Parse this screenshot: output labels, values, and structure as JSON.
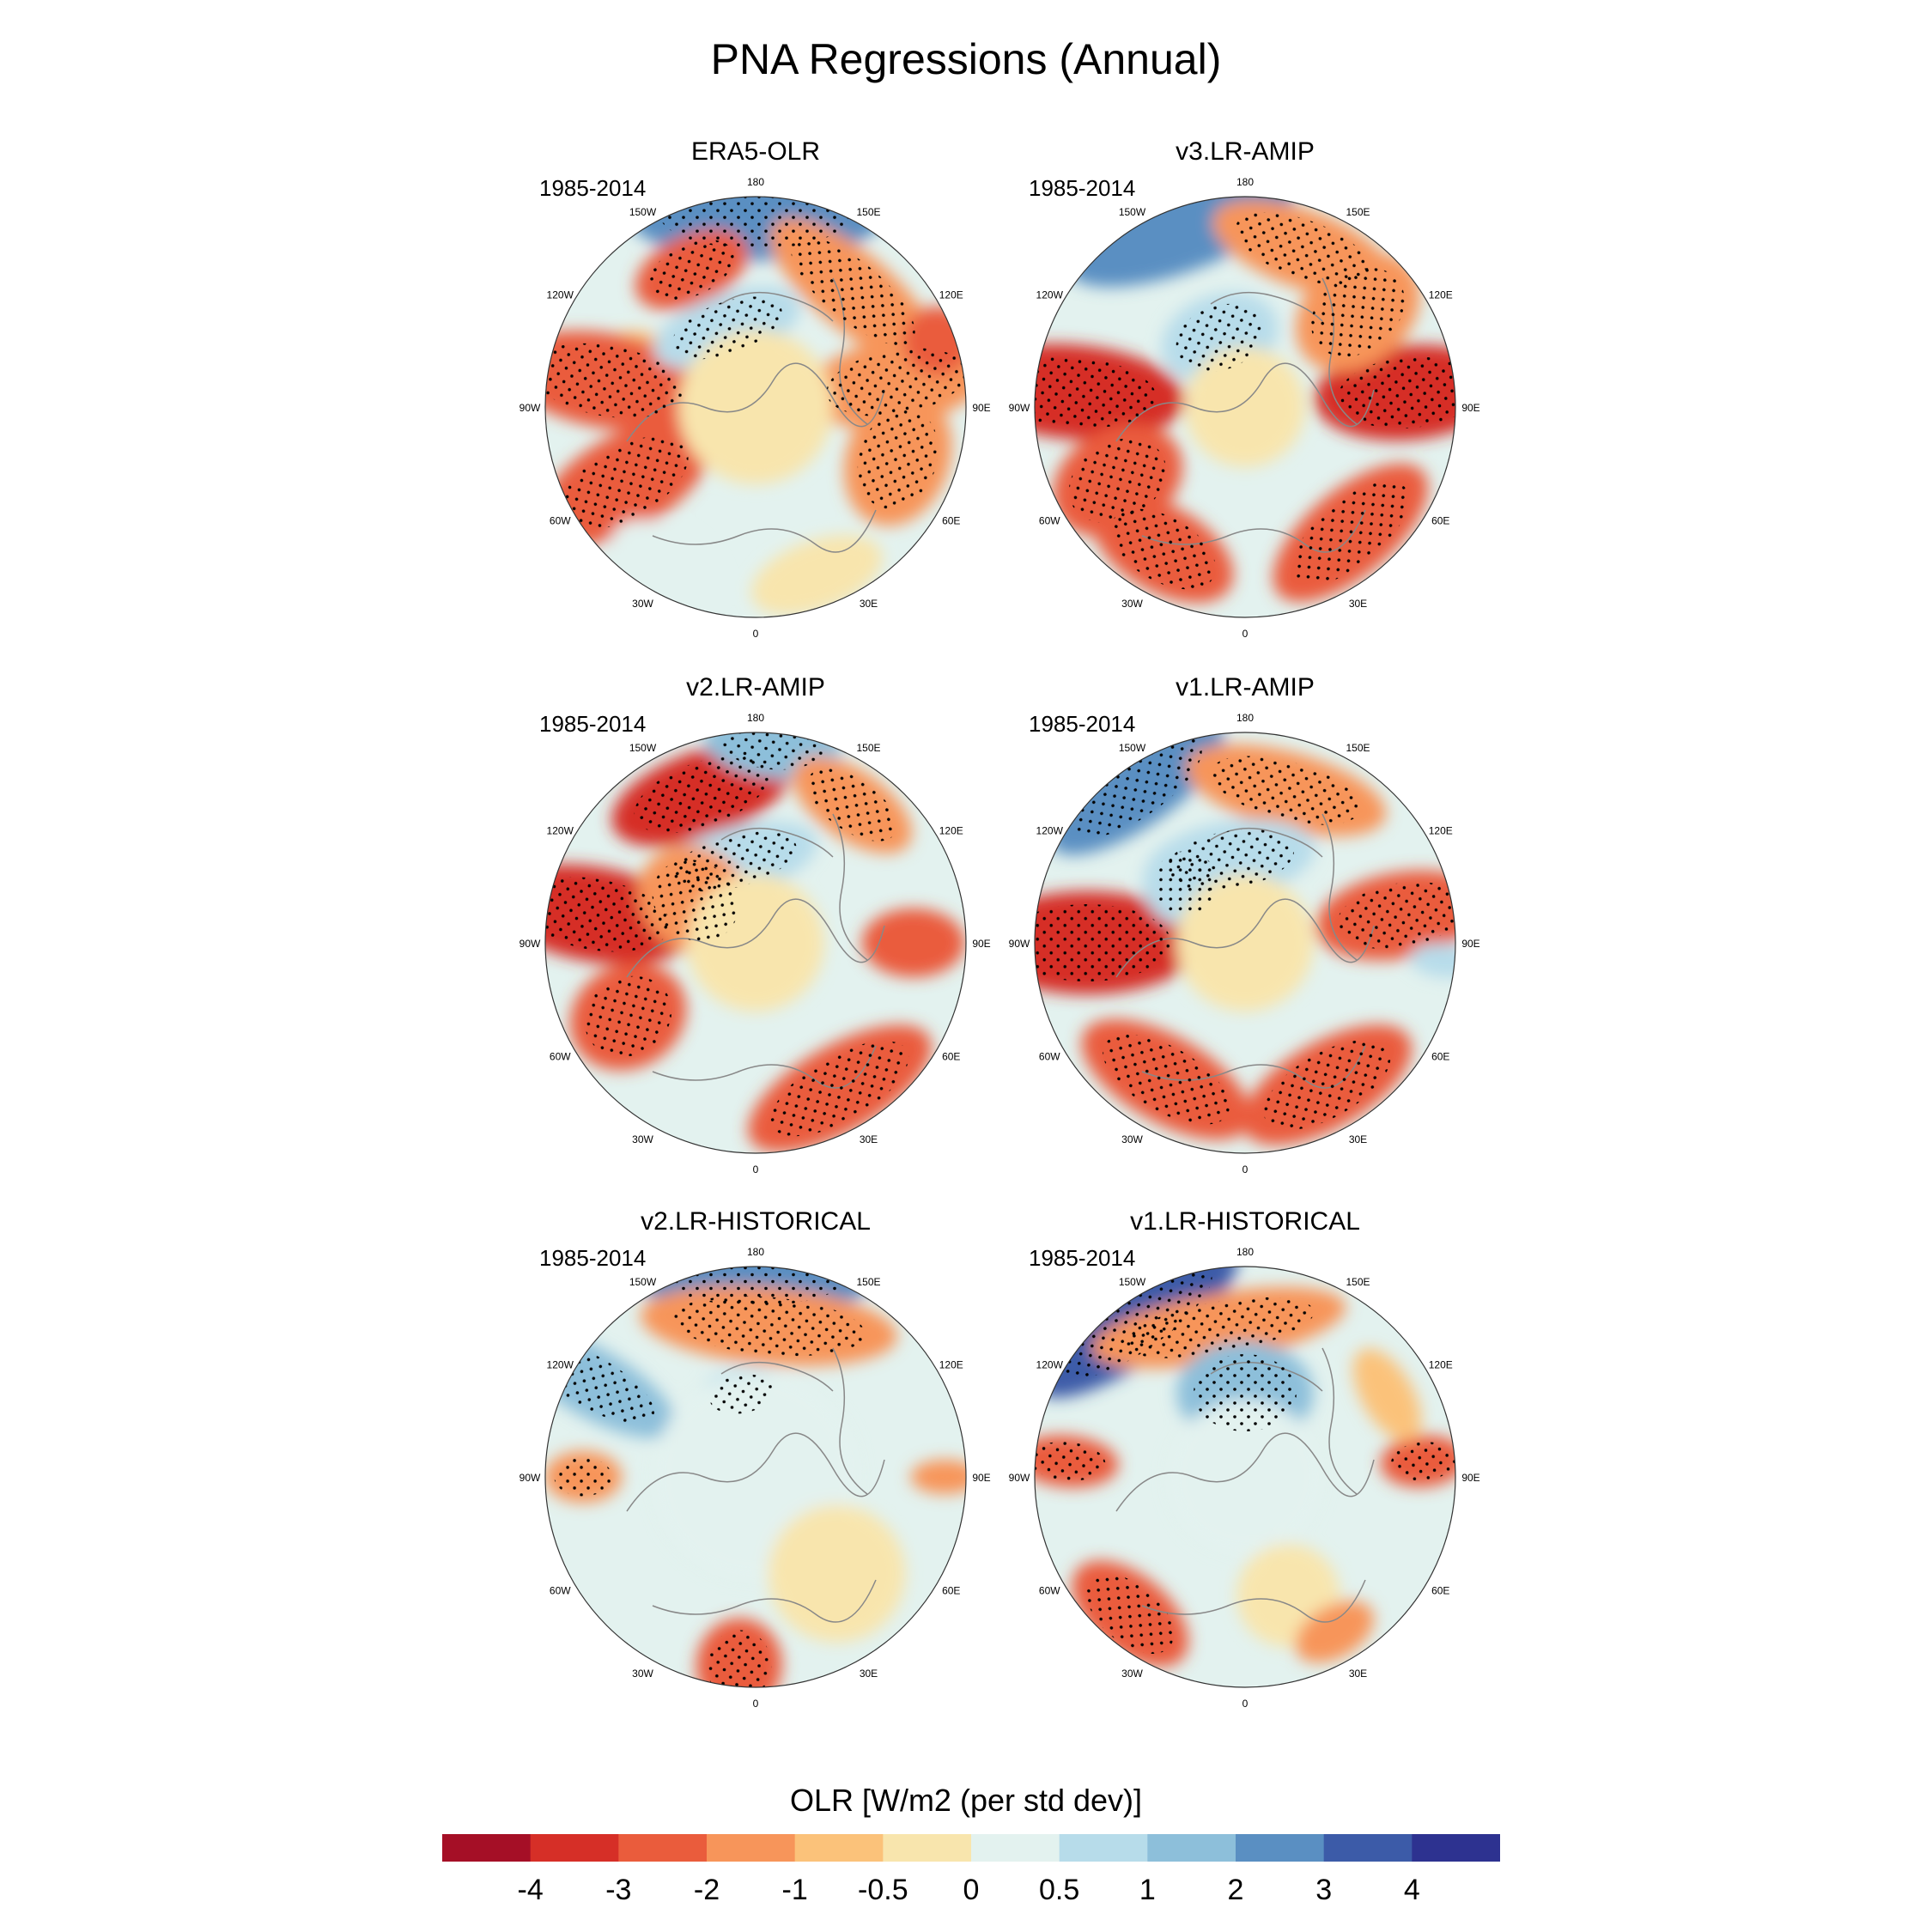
{
  "title": "PNA Regressions (Annual)",
  "panels": [
    {
      "name": "ERA5-OLR",
      "period": "1985-2014",
      "pattern": "era5"
    },
    {
      "name": "v3.LR-AMIP",
      "period": "1985-2014",
      "pattern": "v3amip"
    },
    {
      "name": "v2.LR-AMIP",
      "period": "1985-2014",
      "pattern": "v2amip"
    },
    {
      "name": "v1.LR-AMIP",
      "period": "1985-2014",
      "pattern": "v1amip"
    },
    {
      "name": "v2.LR-HISTORICAL",
      "period": "1985-2014",
      "pattern": "v2hist"
    },
    {
      "name": "v1.LR-HISTORICAL",
      "period": "1985-2014",
      "pattern": "v1hist"
    }
  ],
  "longitude_labels": [
    "180",
    "150E",
    "120E",
    "90E",
    "60E",
    "30E",
    "0",
    "30W",
    "60W",
    "90W",
    "120W",
    "150W"
  ],
  "colorbar": {
    "title": "OLR [W/m2 (per std dev)]",
    "labels": [
      "-4",
      "-3",
      "-2",
      "-1",
      "-0.5",
      "0",
      "0.5",
      "1",
      "2",
      "3",
      "4"
    ],
    "colors": [
      "#a50f26",
      "#d62f27",
      "#ea5c3c",
      "#f7955a",
      "#fbc27a",
      "#f8e5ad",
      "#e3f2ef",
      "#b7dcea",
      "#8dbfda",
      "#5a8fc2",
      "#3c5ba8",
      "#2d3290"
    ]
  },
  "chart_data": {
    "type": "map",
    "projection": "north polar stereographic",
    "variable": "OLR regression on PNA index",
    "units": "W/m2 (per std dev)",
    "contour_levels": [
      -4,
      -3,
      -2,
      -1,
      -0.5,
      0,
      0.5,
      1,
      2,
      3,
      4
    ],
    "stippling": "statistically significant regions"
  }
}
